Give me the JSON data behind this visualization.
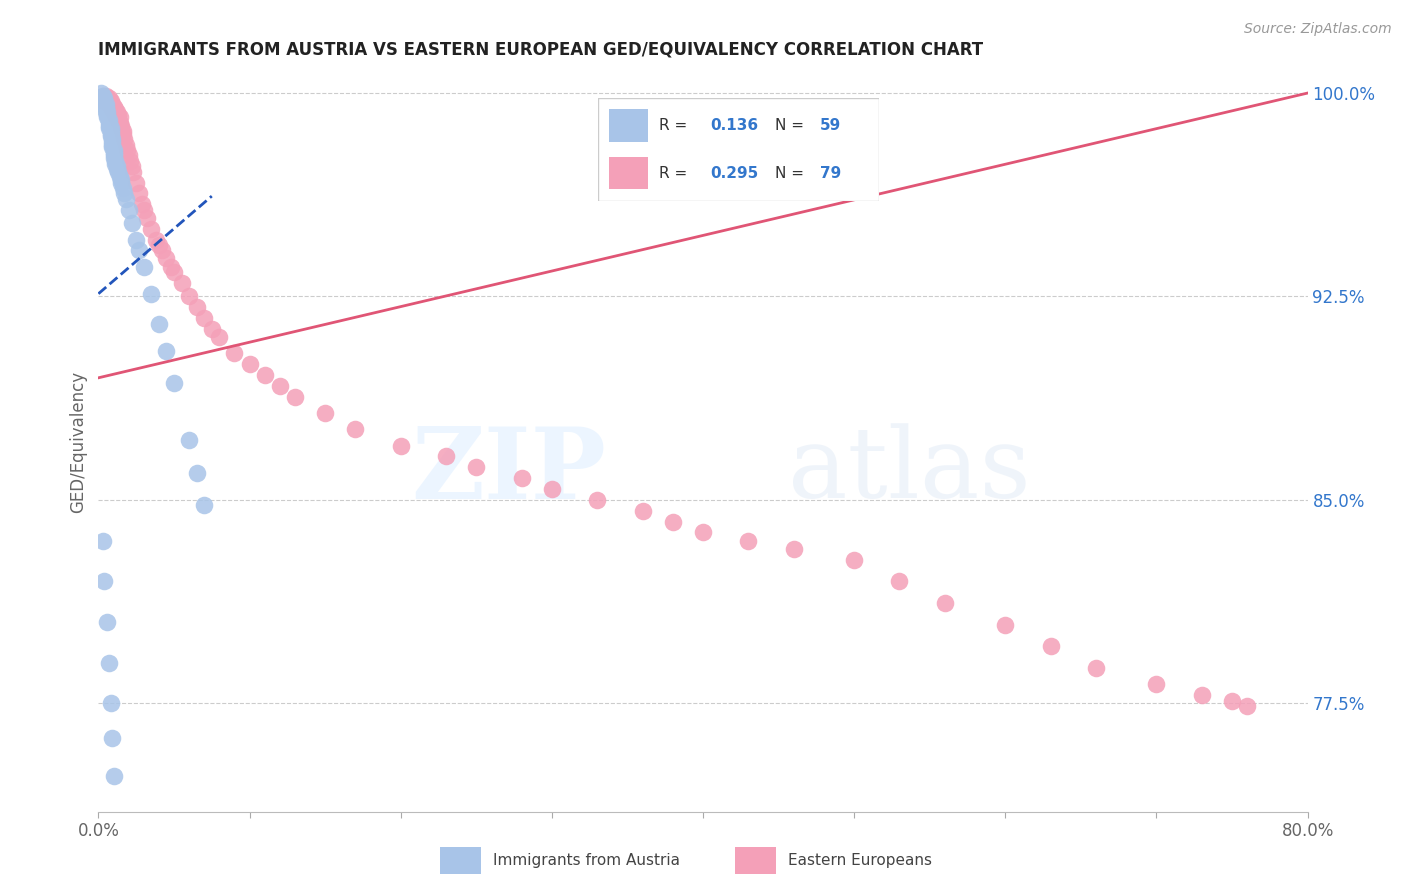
{
  "title": "IMMIGRANTS FROM AUSTRIA VS EASTERN EUROPEAN GED/EQUIVALENCY CORRELATION CHART",
  "source": "Source: ZipAtlas.com",
  "ylabel": "GED/Equivalency",
  "xlim": [
    0.0,
    0.8
  ],
  "ylim": [
    0.735,
    1.008
  ],
  "yticks": [
    0.775,
    0.85,
    0.925,
    1.0
  ],
  "ytick_labels": [
    "77.5%",
    "85.0%",
    "92.5%",
    "100.0%"
  ],
  "xticks": [
    0.0,
    0.1,
    0.2,
    0.3,
    0.4,
    0.5,
    0.6,
    0.7,
    0.8
  ],
  "xtick_labels": [
    "0.0%",
    "",
    "",
    "",
    "",
    "",
    "",
    "",
    "80.0%"
  ],
  "blue_color": "#a8c4e8",
  "pink_color": "#f4a0b8",
  "blue_line_color": "#2255bb",
  "pink_line_color": "#e05575",
  "blue_x": [
    0.002,
    0.003,
    0.003,
    0.004,
    0.004,
    0.004,
    0.005,
    0.005,
    0.005,
    0.005,
    0.006,
    0.006,
    0.006,
    0.007,
    0.007,
    0.007,
    0.007,
    0.008,
    0.008,
    0.008,
    0.008,
    0.009,
    0.009,
    0.009,
    0.009,
    0.01,
    0.01,
    0.01,
    0.01,
    0.011,
    0.011,
    0.012,
    0.012,
    0.013,
    0.014,
    0.015,
    0.015,
    0.016,
    0.017,
    0.018,
    0.02,
    0.022,
    0.025,
    0.027,
    0.03,
    0.035,
    0.04,
    0.045,
    0.05,
    0.06,
    0.065,
    0.07,
    0.003,
    0.004,
    0.006,
    0.007,
    0.008,
    0.009,
    0.01
  ],
  "blue_y": [
    1.0,
    0.999,
    0.998,
    0.998,
    0.997,
    0.996,
    0.996,
    0.995,
    0.994,
    0.993,
    0.993,
    0.992,
    0.991,
    0.99,
    0.989,
    0.988,
    0.987,
    0.987,
    0.986,
    0.985,
    0.984,
    0.983,
    0.982,
    0.981,
    0.98,
    0.979,
    0.978,
    0.977,
    0.976,
    0.975,
    0.974,
    0.973,
    0.972,
    0.971,
    0.969,
    0.968,
    0.967,
    0.965,
    0.963,
    0.961,
    0.957,
    0.952,
    0.946,
    0.942,
    0.936,
    0.926,
    0.915,
    0.905,
    0.893,
    0.872,
    0.86,
    0.848,
    0.835,
    0.82,
    0.805,
    0.79,
    0.775,
    0.762,
    0.748
  ],
  "pink_x": [
    0.003,
    0.004,
    0.004,
    0.005,
    0.006,
    0.006,
    0.007,
    0.007,
    0.008,
    0.008,
    0.009,
    0.009,
    0.01,
    0.01,
    0.011,
    0.011,
    0.012,
    0.012,
    0.013,
    0.013,
    0.014,
    0.014,
    0.015,
    0.015,
    0.016,
    0.016,
    0.017,
    0.018,
    0.019,
    0.02,
    0.021,
    0.022,
    0.023,
    0.025,
    0.027,
    0.029,
    0.03,
    0.032,
    0.035,
    0.038,
    0.04,
    0.042,
    0.045,
    0.048,
    0.05,
    0.055,
    0.06,
    0.065,
    0.07,
    0.075,
    0.08,
    0.09,
    0.1,
    0.11,
    0.12,
    0.13,
    0.15,
    0.17,
    0.2,
    0.23,
    0.25,
    0.28,
    0.3,
    0.33,
    0.36,
    0.38,
    0.4,
    0.43,
    0.46,
    0.5,
    0.53,
    0.56,
    0.6,
    0.63,
    0.66,
    0.7,
    0.73,
    0.75,
    0.76
  ],
  "pink_y": [
    0.999,
    0.998,
    0.997,
    0.999,
    0.998,
    0.997,
    0.998,
    0.996,
    0.997,
    0.995,
    0.996,
    0.994,
    0.995,
    0.993,
    0.994,
    0.992,
    0.993,
    0.991,
    0.992,
    0.99,
    0.991,
    0.989,
    0.988,
    0.987,
    0.986,
    0.985,
    0.983,
    0.981,
    0.979,
    0.977,
    0.975,
    0.973,
    0.971,
    0.967,
    0.963,
    0.959,
    0.957,
    0.954,
    0.95,
    0.946,
    0.944,
    0.942,
    0.939,
    0.936,
    0.934,
    0.93,
    0.925,
    0.921,
    0.917,
    0.913,
    0.91,
    0.904,
    0.9,
    0.896,
    0.892,
    0.888,
    0.882,
    0.876,
    0.87,
    0.866,
    0.862,
    0.858,
    0.854,
    0.85,
    0.846,
    0.842,
    0.838,
    0.835,
    0.832,
    0.828,
    0.82,
    0.812,
    0.804,
    0.796,
    0.788,
    0.782,
    0.778,
    0.776,
    0.774
  ]
}
